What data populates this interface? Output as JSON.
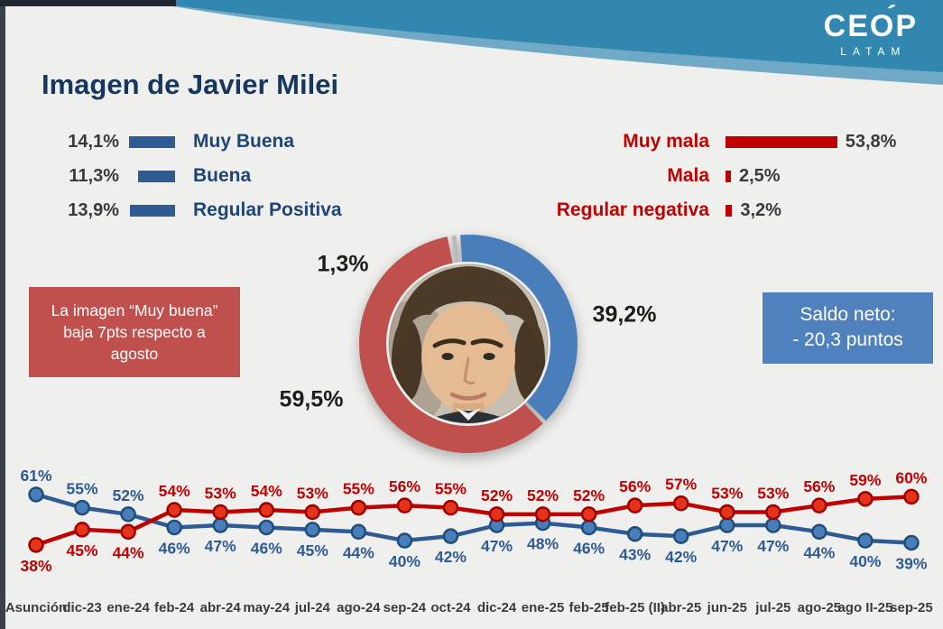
{
  "title": "Imagen de Javier Milei",
  "logo": {
    "name": "CEOP",
    "accent": "´",
    "sub": "LATAM"
  },
  "note_box": {
    "text": "La imagen “Muy buena” baja 7pts respecto a agosto"
  },
  "saldo_box": {
    "line1": "Saldo neto:",
    "line2": "- 20,3 puntos"
  },
  "legend_left": {
    "bar_color": "#2E5B94",
    "items": [
      {
        "value_label": "14,1%",
        "value": 14.1,
        "label": "Muy Buena"
      },
      {
        "value_label": "11,3%",
        "value": 11.3,
        "label": "Buena"
      },
      {
        "value_label": "13,9%",
        "value": 13.9,
        "label": "Regular Positiva"
      }
    ]
  },
  "legend_right": {
    "bar_color": "#C00000",
    "items": [
      {
        "label": "Muy mala",
        "value": 53.8,
        "value_label": "53,8%"
      },
      {
        "label": "Mala",
        "value": 2.5,
        "value_label": "2,5%"
      },
      {
        "label": "Regular negativa",
        "value": 3.2,
        "value_label": "3,2%"
      }
    ]
  },
  "colors": {
    "header_teal": "#3187B0",
    "header_teal_light": "#6FA9C6",
    "title_navy": "#17375E",
    "blue_line": "#2E5B94",
    "blue_dot_fill": "#4A7EBB",
    "blue_dot_stroke": "#1F4E79",
    "red_line": "#C00000",
    "red_dot_fill": "#E5331C",
    "red_dot_stroke": "#9C0000",
    "note_red_bg": "#C0504D",
    "note_blue_bg": "#4F81BD"
  },
  "chart_data": [
    {
      "type": "pie",
      "donut": true,
      "start_angle_deg": -10,
      "slices": [
        {
          "label": "1,3%",
          "value": 1.3,
          "color": "#B9B9B9"
        },
        {
          "label": "39,2%",
          "value": 39.2,
          "color": "#4A7EBB"
        },
        {
          "label": "59,5%",
          "value": 59.5,
          "color": "#C0504D"
        }
      ]
    },
    {
      "type": "line",
      "grid": false,
      "value_labels": true,
      "ylim": [
        35,
        65
      ],
      "categories": [
        "Asunción",
        "dic-23",
        "ene-24",
        "feb-24",
        "abr-24",
        "may-24",
        "jul-24",
        "ago-24",
        "sep-24",
        "oct-24",
        "dic-24",
        "ene-25",
        "feb-25",
        "feb-25 (II)",
        "abr-25",
        "jun-25",
        "jul-25",
        "ago-25",
        "ago II-25",
        "sep-25"
      ],
      "series": [
        {
          "name": "blue_series",
          "color": "#2E5B94",
          "values": [
            61,
            55,
            52,
            46,
            47,
            46,
            45,
            44,
            40,
            42,
            47,
            48,
            46,
            43,
            42,
            47,
            47,
            44,
            40,
            39
          ]
        },
        {
          "name": "red_series",
          "color": "#C00000",
          "values": [
            38,
            45,
            44,
            54,
            53,
            54,
            53,
            55,
            56,
            55,
            52,
            52,
            52,
            56,
            57,
            53,
            53,
            56,
            59,
            60
          ]
        }
      ]
    }
  ]
}
